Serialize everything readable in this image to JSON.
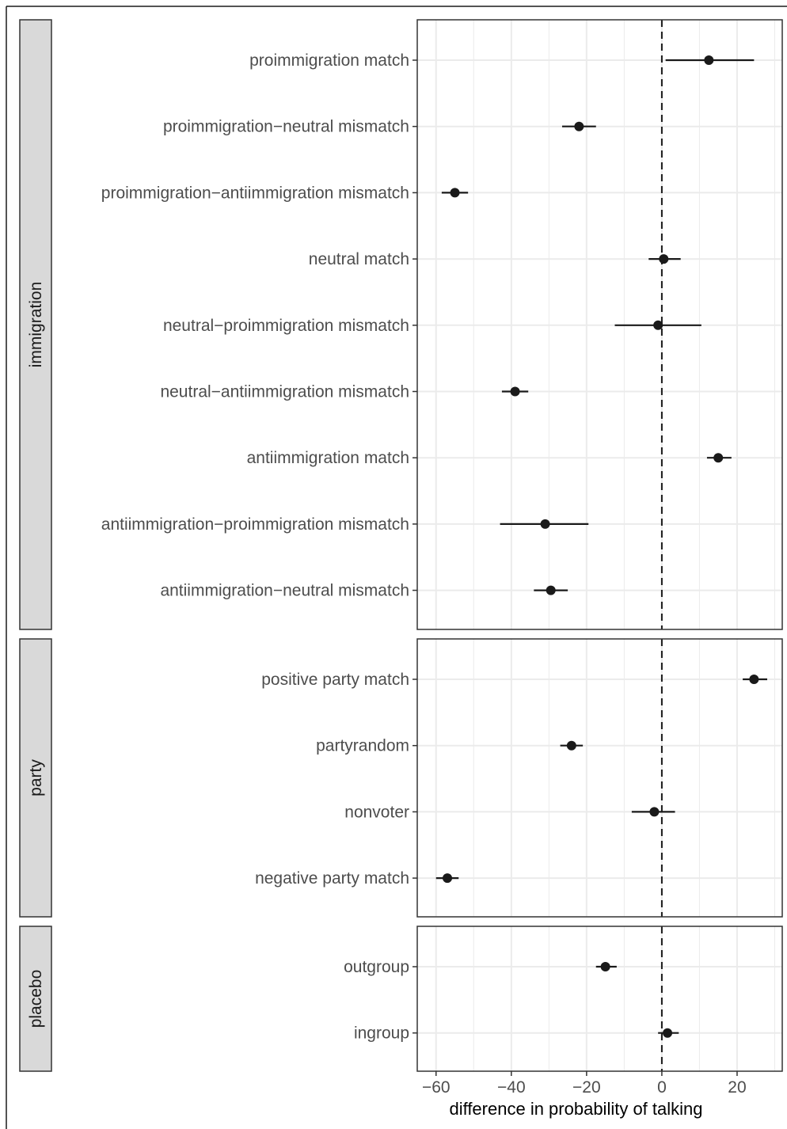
{
  "chart_data": {
    "type": "scatter",
    "subtype": "dot-and-whisker, faceted by panel",
    "title": "",
    "xlabel": "difference in probability of talking",
    "ylabel": "",
    "xlim": [
      -65,
      32
    ],
    "xticks": [
      -60,
      -40,
      -20,
      0,
      20
    ],
    "xtick_labels": [
      "−60",
      "−40",
      "−20",
      "0",
      "20"
    ],
    "reference_line": {
      "x": 0,
      "style": "dashed"
    },
    "grid": true,
    "legend": "none",
    "colors": {
      "point": "#1a1a1a",
      "interval": "#1a1a1a",
      "grid": "#ebebeb",
      "strip_fill": "#d9d9d9",
      "panel_border": "#333333"
    },
    "panels": [
      {
        "name": "immigration",
        "rows": [
          {
            "label": "proimmigration match",
            "estimate": 12.5,
            "low": 1,
            "high": 24.5
          },
          {
            "label": "proimmigration−neutral mismatch",
            "estimate": -22,
            "low": -26.5,
            "high": -17.5
          },
          {
            "label": "proimmigration−antiimmigration mismatch",
            "estimate": -55,
            "low": -58.5,
            "high": -51.5
          },
          {
            "label": "neutral match",
            "estimate": 0.5,
            "low": -3.5,
            "high": 5
          },
          {
            "label": "neutral−proimmigration mismatch",
            "estimate": -1,
            "low": -12.5,
            "high": 10.5
          },
          {
            "label": "neutral−antiimmigration mismatch",
            "estimate": -39,
            "low": -42.5,
            "high": -35.5
          },
          {
            "label": "antiimmigration match",
            "estimate": 15,
            "low": 12,
            "high": 18.5
          },
          {
            "label": "antiimmigration−proimmigration mismatch",
            "estimate": -31,
            "low": -43,
            "high": -19.5
          },
          {
            "label": "antiimmigration−neutral mismatch",
            "estimate": -29.5,
            "low": -34,
            "high": -25
          }
        ]
      },
      {
        "name": "party",
        "rows": [
          {
            "label": "positive party match",
            "estimate": 24.5,
            "low": 21.5,
            "high": 28
          },
          {
            "label": "partyrandom",
            "estimate": -24,
            "low": -27,
            "high": -21
          },
          {
            "label": "nonvoter",
            "estimate": -2,
            "low": -8,
            "high": 3.5
          },
          {
            "label": "negative party match",
            "estimate": -57,
            "low": -60,
            "high": -54
          }
        ]
      },
      {
        "name": "placebo",
        "rows": [
          {
            "label": "outgroup",
            "estimate": -15,
            "low": -17.5,
            "high": -12
          },
          {
            "label": "ingroup",
            "estimate": 1.5,
            "low": -1,
            "high": 4.5
          }
        ]
      }
    ]
  }
}
